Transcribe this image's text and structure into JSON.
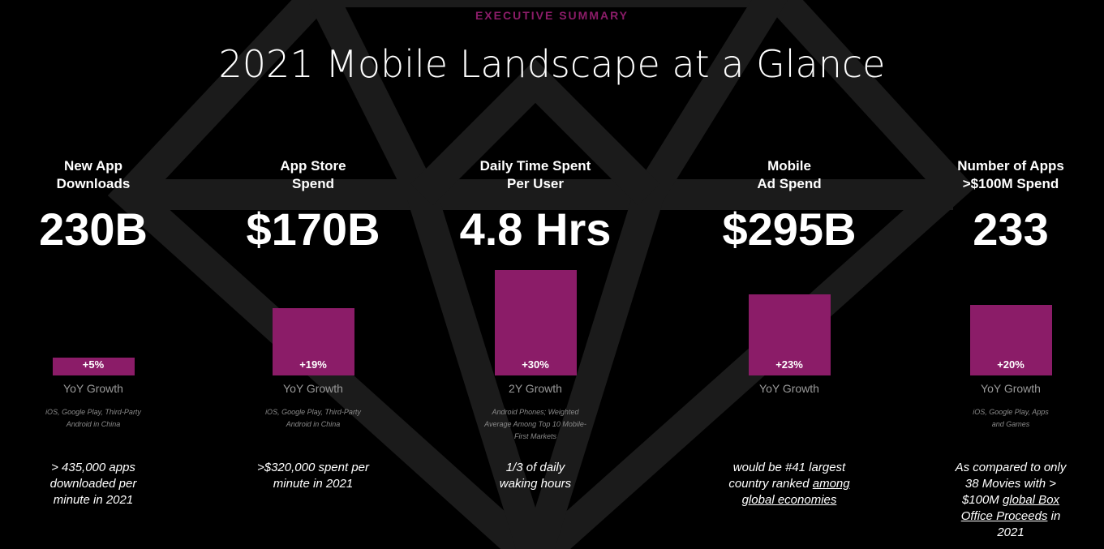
{
  "header": {
    "kicker": "EXECUTIVE SUMMARY",
    "title": "2021 Mobile Landscape at a Glance"
  },
  "bar_color": "#8b1c68",
  "columns": [
    {
      "title": [
        "New App",
        "Downloads"
      ],
      "headline": "230B",
      "growth": {
        "value": 5,
        "label": "+5%"
      },
      "growth_label": "YoY Growth",
      "source": [
        "iOS, Google Play, Third-Party",
        "Android in China"
      ],
      "note": [
        {
          "text": "> 435,000 apps downloaded per minute in 2021"
        }
      ]
    },
    {
      "title": [
        "App Store",
        "Spend"
      ],
      "headline": "$170B",
      "growth": {
        "value": 19,
        "label": "+19%"
      },
      "growth_label": "YoY Growth",
      "source": [
        "iOS, Google Play, Third-Party",
        "Android in China"
      ],
      "note": [
        {
          "text": ">$320,000 spent per minute in 2021"
        }
      ]
    },
    {
      "title": [
        "Daily Time Spent",
        "Per User"
      ],
      "headline": "4.8 Hrs",
      "growth": {
        "value": 30,
        "label": "+30%"
      },
      "growth_label": "2Y Growth",
      "source": [
        "Android Phones; Weighted",
        "Average Among Top 10 Mobile-",
        "First  Markets"
      ],
      "note": [
        {
          "text": "1/3 of daily waking hours"
        }
      ]
    },
    {
      "title": [
        "Mobile",
        "Ad Spend"
      ],
      "headline": "$295B",
      "growth": {
        "value": 23,
        "label": "+23%"
      },
      "growth_label": "YoY Growth",
      "source": [],
      "note": [
        {
          "text": "would be #41 largest country ranked "
        },
        {
          "text": "among global economies",
          "underline": true
        }
      ]
    },
    {
      "title": [
        "Number of Apps",
        ">$100M Spend"
      ],
      "headline": "233",
      "growth": {
        "value": 20,
        "label": "+20%"
      },
      "growth_label": "YoY Growth",
      "source": [
        "iOS, Google Play, Apps",
        "and Games"
      ],
      "note": [
        {
          "text": "As compared to only 38 Movies with > $100M "
        },
        {
          "text": "global Box Office Proceeds",
          "underline": true
        },
        {
          "text": " in 2021"
        }
      ]
    }
  ]
}
